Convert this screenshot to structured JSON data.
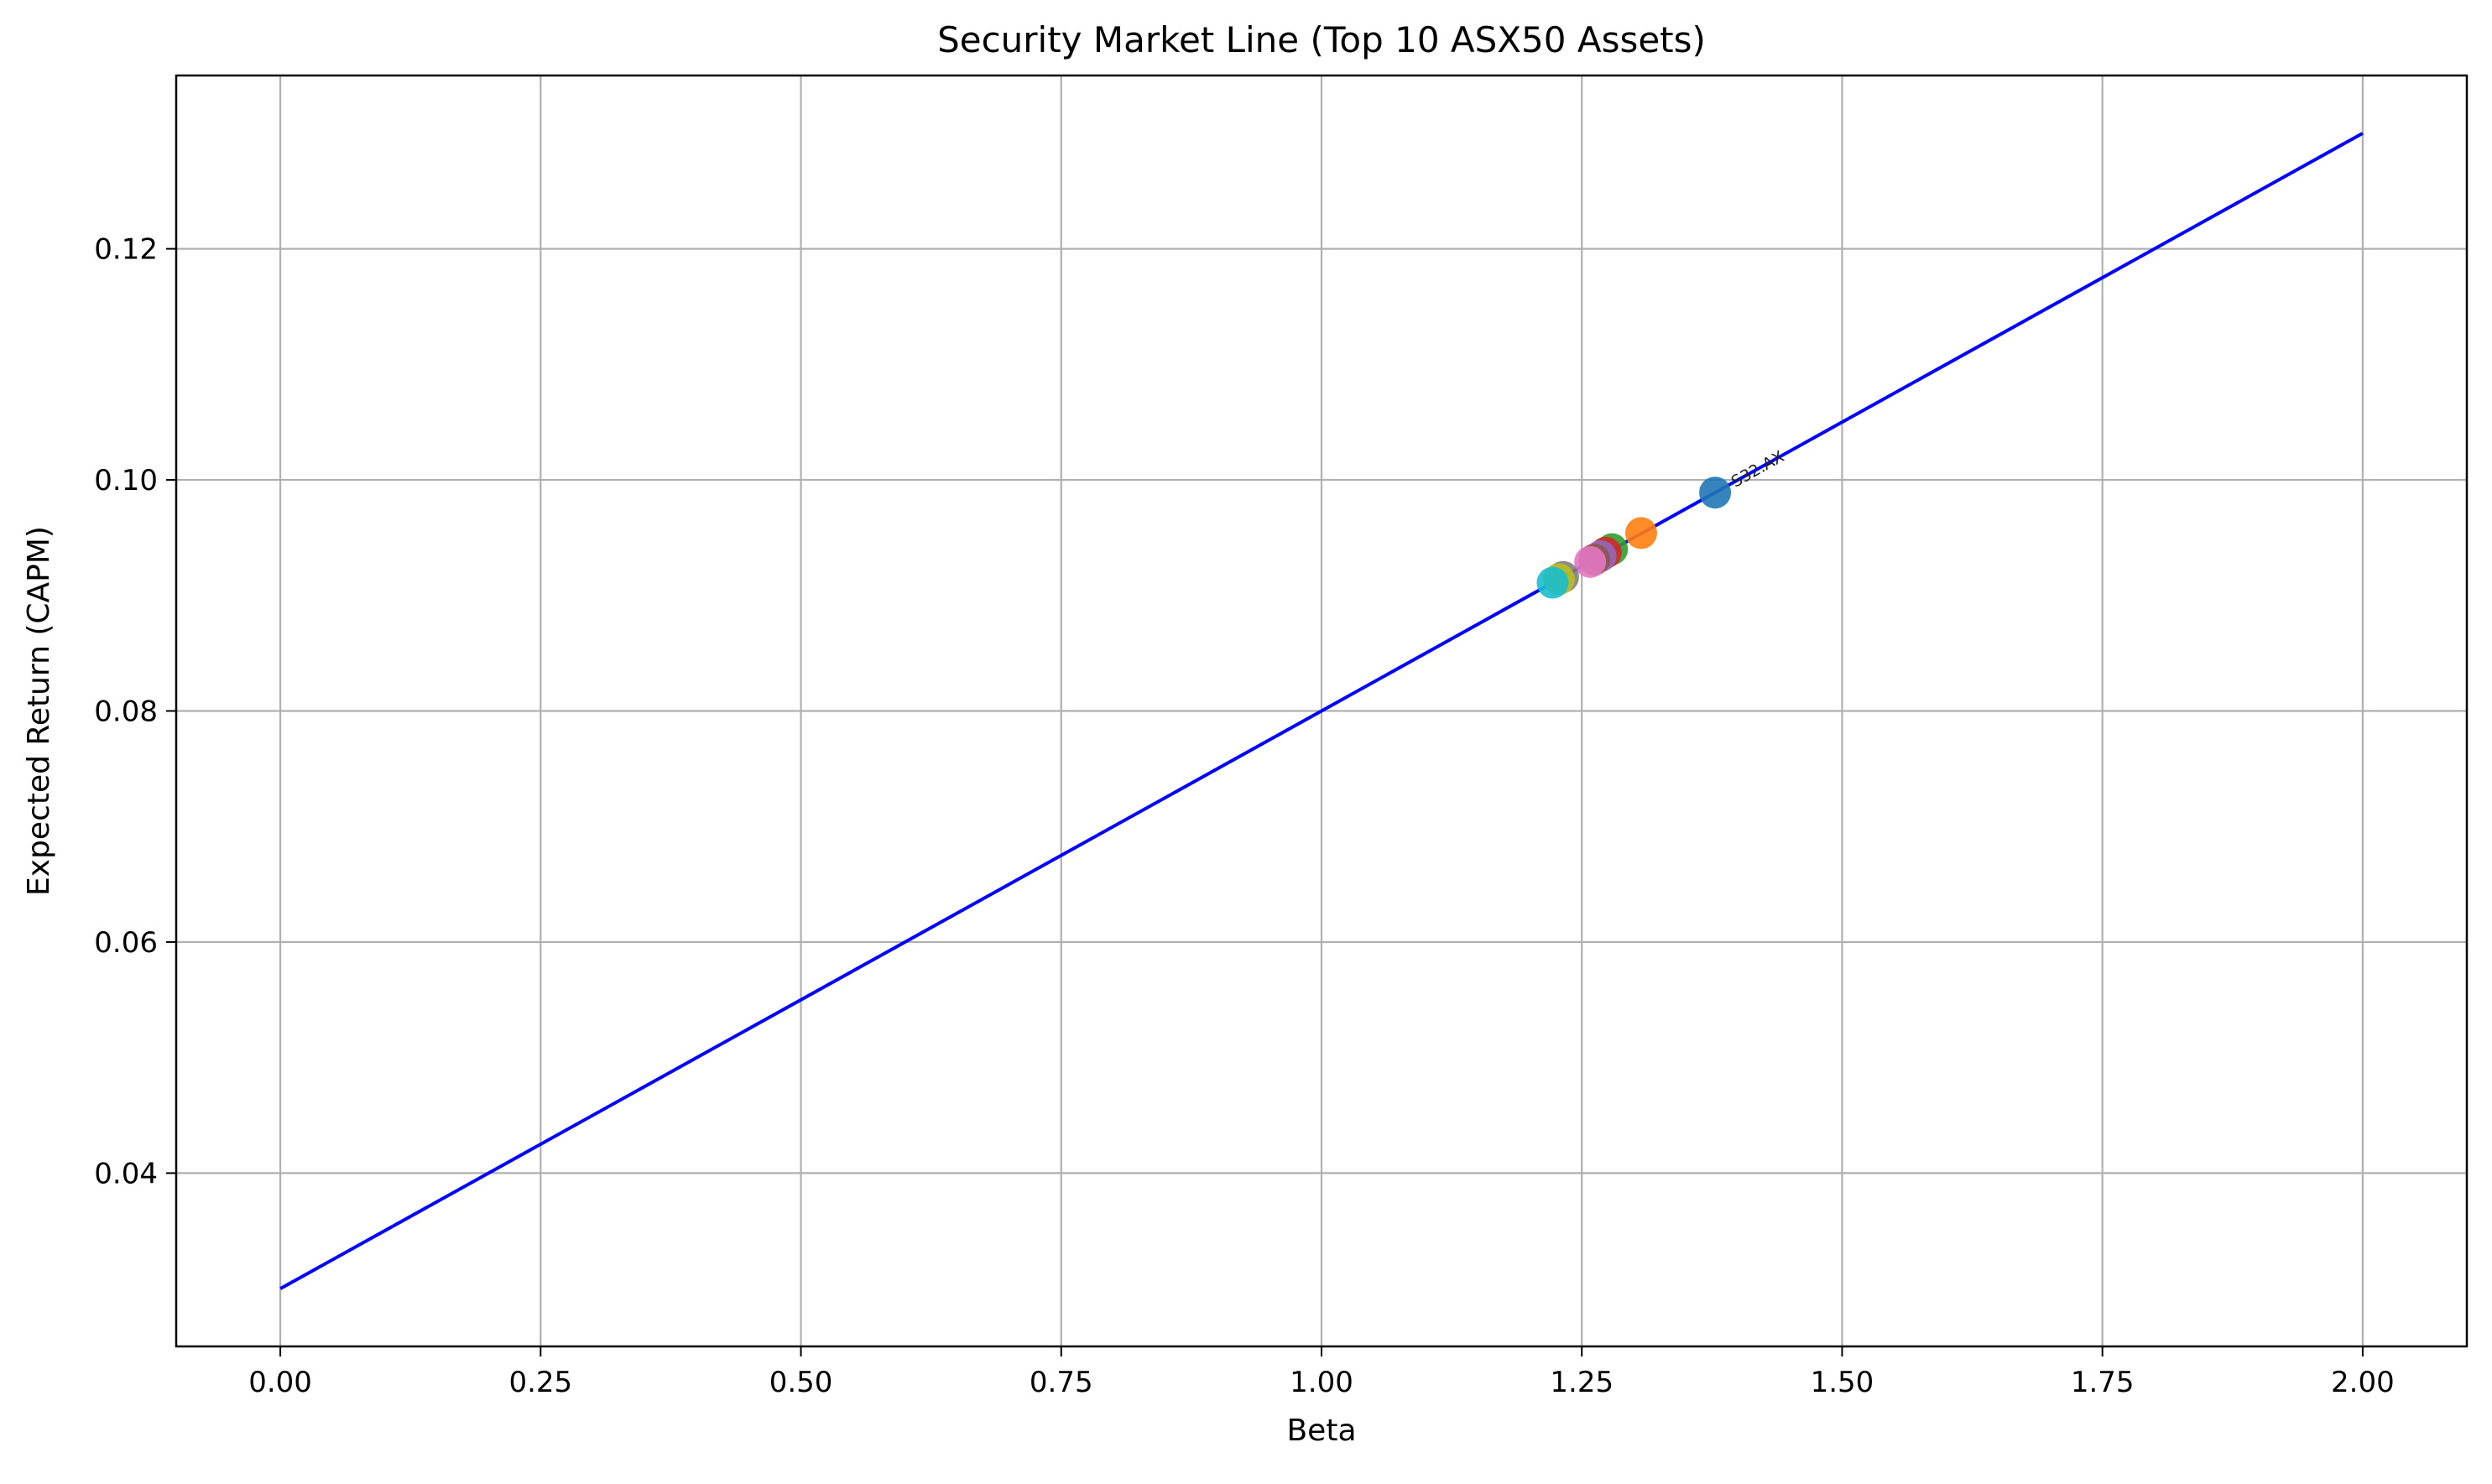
{
  "chart_data": {
    "type": "scatter",
    "title": "Security Market Line (Top 10 ASX50 Assets)",
    "xlabel": "Beta",
    "ylabel": "Expected Return (CAPM)",
    "xlim": [
      -0.1,
      2.1
    ],
    "ylim": [
      0.025,
      0.135
    ],
    "xticks": [
      0.0,
      0.25,
      0.5,
      0.75,
      1.0,
      1.25,
      1.5,
      1.75,
      2.0
    ],
    "xtick_labels": [
      "0.00",
      "0.25",
      "0.50",
      "0.75",
      "1.00",
      "1.25",
      "1.50",
      "1.75",
      "2.00"
    ],
    "yticks": [
      0.04,
      0.06,
      0.08,
      0.1,
      0.12
    ],
    "ytick_labels": [
      "0.04",
      "0.06",
      "0.08",
      "0.10",
      "0.12"
    ],
    "grid": true,
    "line": {
      "color": "#0000ff",
      "x": [
        0,
        2
      ],
      "y": [
        0.03,
        0.13
      ]
    },
    "points": [
      {
        "label": "S32.AX",
        "x": 1.378,
        "y": 0.0989,
        "color": "#1f77b4"
      },
      {
        "label": "",
        "x": 1.307,
        "y": 0.0954,
        "color": "#ff7f0e"
      },
      {
        "label": "",
        "x": 1.279,
        "y": 0.094,
        "color": "#2ca02c"
      },
      {
        "label": "",
        "x": 1.273,
        "y": 0.0937,
        "color": "#d62728"
      },
      {
        "label": "",
        "x": 1.268,
        "y": 0.0934,
        "color": "#9467bd"
      },
      {
        "label": "",
        "x": 1.262,
        "y": 0.0931,
        "color": "#8c564b"
      },
      {
        "label": "",
        "x": 1.258,
        "y": 0.0929,
        "color": "#e377c2"
      },
      {
        "label": "",
        "x": 1.232,
        "y": 0.0916,
        "color": "#7f7f7f"
      },
      {
        "label": "",
        "x": 1.228,
        "y": 0.0914,
        "color": "#bcbd22"
      },
      {
        "label": "",
        "x": 1.222,
        "y": 0.0911,
        "color": "#17becf"
      }
    ]
  }
}
